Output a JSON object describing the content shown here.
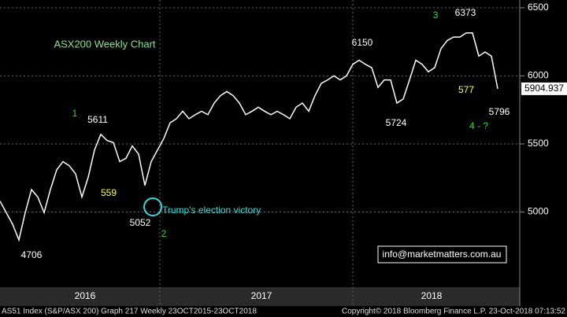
{
  "chart_data": {
    "type": "line",
    "title": "ASX200 Weekly Chart",
    "color": "#ffffff",
    "values": [
      5080,
      4995,
      4910,
      4795,
      4995,
      5165,
      5110,
      4995,
      5165,
      5310,
      5370,
      5340,
      5280,
      5110,
      5255,
      5455,
      5570,
      5525,
      5510,
      5370,
      5395,
      5485,
      5425,
      5195,
      5370,
      5455,
      5540,
      5655,
      5685,
      5740,
      5685,
      5715,
      5740,
      5715,
      5800,
      5855,
      5885,
      5855,
      5800,
      5715,
      5740,
      5770,
      5740,
      5715,
      5740,
      5715,
      5685,
      5770,
      5800,
      5740,
      5855,
      5945,
      5970,
      6000,
      5970,
      6000,
      6085,
      6115,
      6085,
      6060,
      5915,
      5970,
      5970,
      5800,
      5830,
      5970,
      6115,
      6085,
      6030,
      6060,
      6200,
      6260,
      6285,
      6285,
      6315,
      6315,
      6145,
      6175,
      6145,
      5904.937
    ],
    "ylim": [
      4460,
      6557
    ],
    "yticks": [
      5000,
      5500,
      6000,
      6500
    ],
    "xticks": [
      {
        "value": 13.5,
        "label": "2016"
      },
      {
        "value": 41.5,
        "label": "2017"
      },
      {
        "value": 68.5,
        "label": "2018"
      }
    ],
    "grid": true,
    "last_price_label": "5904.937",
    "annotations": [
      {
        "text": "1",
        "color": "#22dd22"
      },
      {
        "text": "5611",
        "color": "#ffffff"
      },
      {
        "text": "559",
        "color": "#ffff44"
      },
      {
        "text": "Trump's election victory",
        "color": "#33dddd"
      },
      {
        "text": "5052",
        "color": "#ffffff"
      },
      {
        "text": "2",
        "color": "#22dd22"
      },
      {
        "text": "4706",
        "color": "#ffffff"
      },
      {
        "text": "6150",
        "color": "#ffffff"
      },
      {
        "text": "5724",
        "color": "#ffffff"
      },
      {
        "text": "3",
        "color": "#22dd22"
      },
      {
        "text": "6373",
        "color": "#ffffff"
      },
      {
        "text": "577",
        "color": "#ffff44"
      },
      {
        "text": "5796",
        "color": "#ffffff"
      },
      {
        "text": "4 - ?",
        "color": "#22dd22"
      }
    ],
    "watermark": "info@marketmatters.com.au",
    "footer_left": "AS51 Index (S&P/ASX 200) Graph 217  Weekly 23OCT2015-23OCT2018",
    "footer_right": "Copyright© 2018 Bloomberg Finance L.P.     23-Oct-2018 07:13:52"
  }
}
